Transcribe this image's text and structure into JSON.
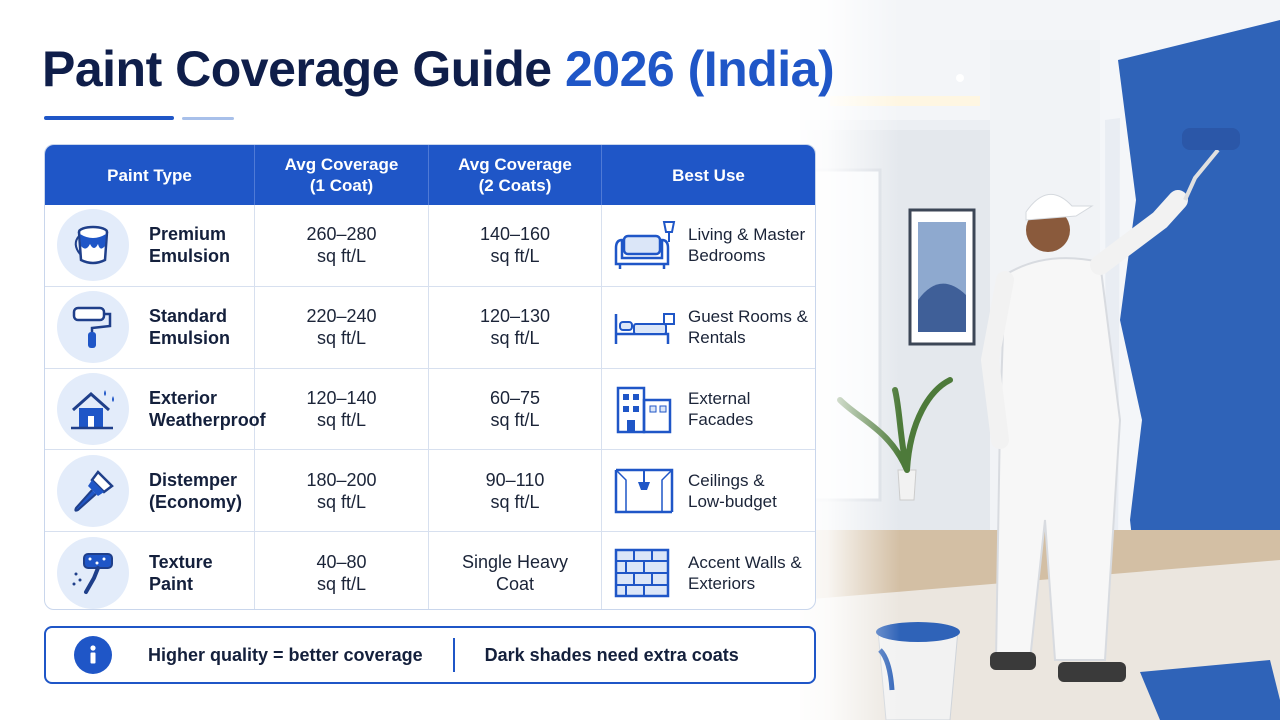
{
  "title": {
    "main": "Paint Coverage Guide",
    "accent": "2026 (India)"
  },
  "table": {
    "headers": [
      "Paint Type",
      "Avg Coverage\n(1 Coat)",
      "Avg Coverage\n(2 Coats)",
      "Best Use"
    ],
    "rows": [
      {
        "icon": "paint-bucket-icon",
        "type": "Premium\nEmulsion",
        "coat1": "260–280\nsq ft/L",
        "coat2": "140–160\nsq ft/L",
        "use_icon": "sofa-lamp-icon",
        "use": "Living & Master\nBedrooms"
      },
      {
        "icon": "paint-roller-icon",
        "type": "Standard\nEmulsion",
        "coat1": "220–240\nsq ft/L",
        "coat2": "120–130\nsq ft/L",
        "use_icon": "bed-icon",
        "use": "Guest Rooms &\nRentals"
      },
      {
        "icon": "house-rain-icon",
        "type": "Exterior\nWeatherproof",
        "coat1": "120–140\nsq ft/L",
        "coat2": "60–75\nsq ft/L",
        "use_icon": "building-icon",
        "use": "External\nFacades"
      },
      {
        "icon": "paint-brush-icon",
        "type": "Distemper\n(Economy)",
        "coat1": "180–200\nsq ft/L",
        "coat2": "90–110\nsq ft/L",
        "use_icon": "ceiling-lamp-icon",
        "use": "Ceilings &\nLow-budget"
      },
      {
        "icon": "texture-roller-icon",
        "type": "Texture\nPaint",
        "coat1": "40–80\nsq ft/L",
        "coat2": "Single Heavy\nCoat",
        "use_icon": "brick-wall-icon",
        "use": "Accent Walls &\nExteriors"
      }
    ]
  },
  "footer": {
    "note1": "Higher quality = better coverage",
    "note2": "Dark shades need extra coats"
  },
  "colors": {
    "primary": "#1f56c7",
    "title": "#0f1e4a",
    "badge": "#e3ecfa"
  }
}
